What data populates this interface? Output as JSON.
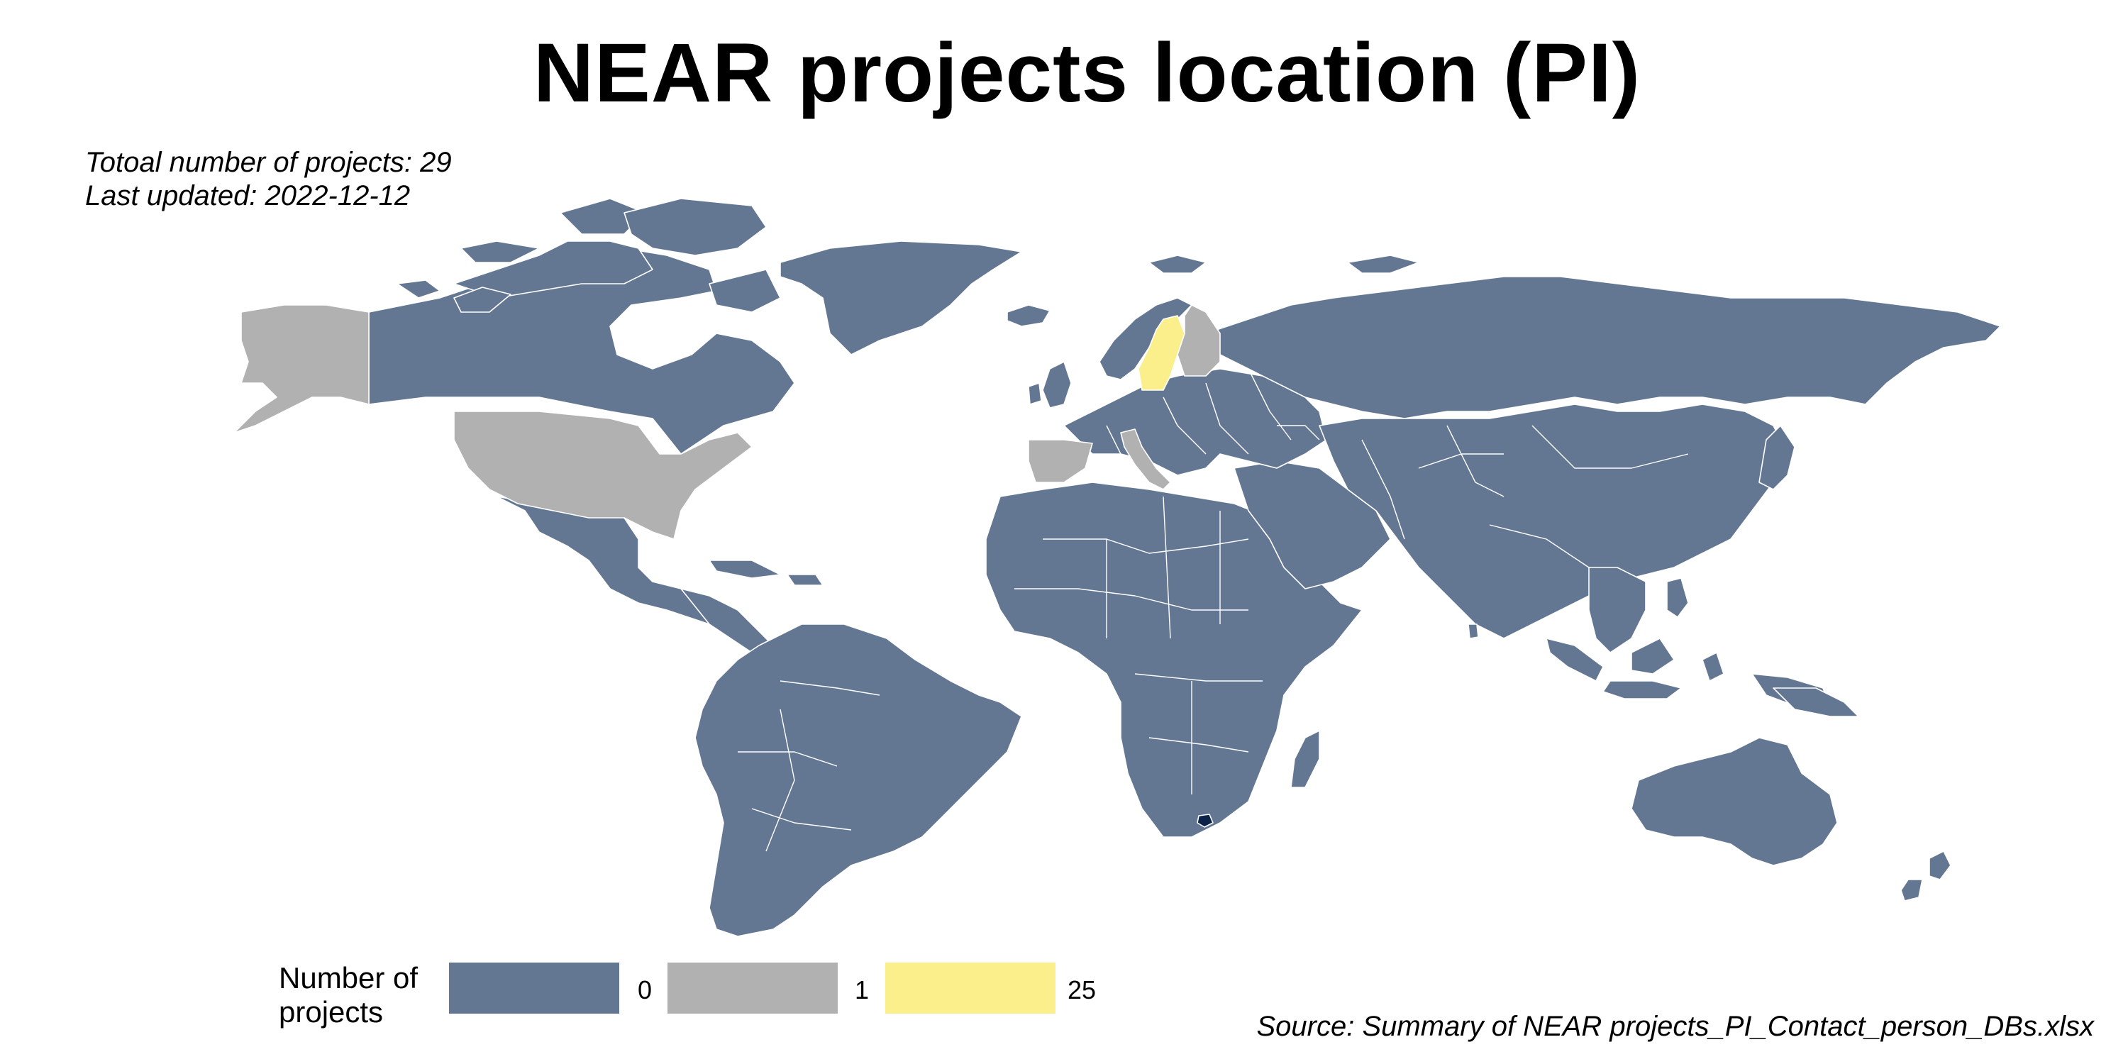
{
  "title": "NEAR projects location (PI)",
  "subtitle": {
    "line1": "Totoal number of projects: 29",
    "line2": "Last updated: 2022-12-12"
  },
  "caption": "Source: Summary of NEAR projects_PI_Contact_person_DBs.xlsx",
  "legend": {
    "title": "Number of projects",
    "items": [
      {
        "label": "0",
        "color": "#647792"
      },
      {
        "label": "1",
        "color": "#b1b1b1"
      },
      {
        "label": "25",
        "color": "#fbef8b"
      }
    ]
  },
  "colors": {
    "zero": "#647792",
    "one": "#b1b1b1",
    "many": "#fbef8b",
    "missing": "#0b2348",
    "border": "#ffffff"
  },
  "map_data": {
    "projection": "equirectangular",
    "countries_with_projects": [
      {
        "country": "Sweden",
        "projects": 25
      },
      {
        "country": "United States",
        "projects": 1
      },
      {
        "country": "Finland",
        "projects": 1
      },
      {
        "country": "Spain",
        "projects": 1
      },
      {
        "country": "Italy",
        "projects": 1
      }
    ],
    "other_countries_projects": 0,
    "no_data_highlight": "Lesotho"
  }
}
